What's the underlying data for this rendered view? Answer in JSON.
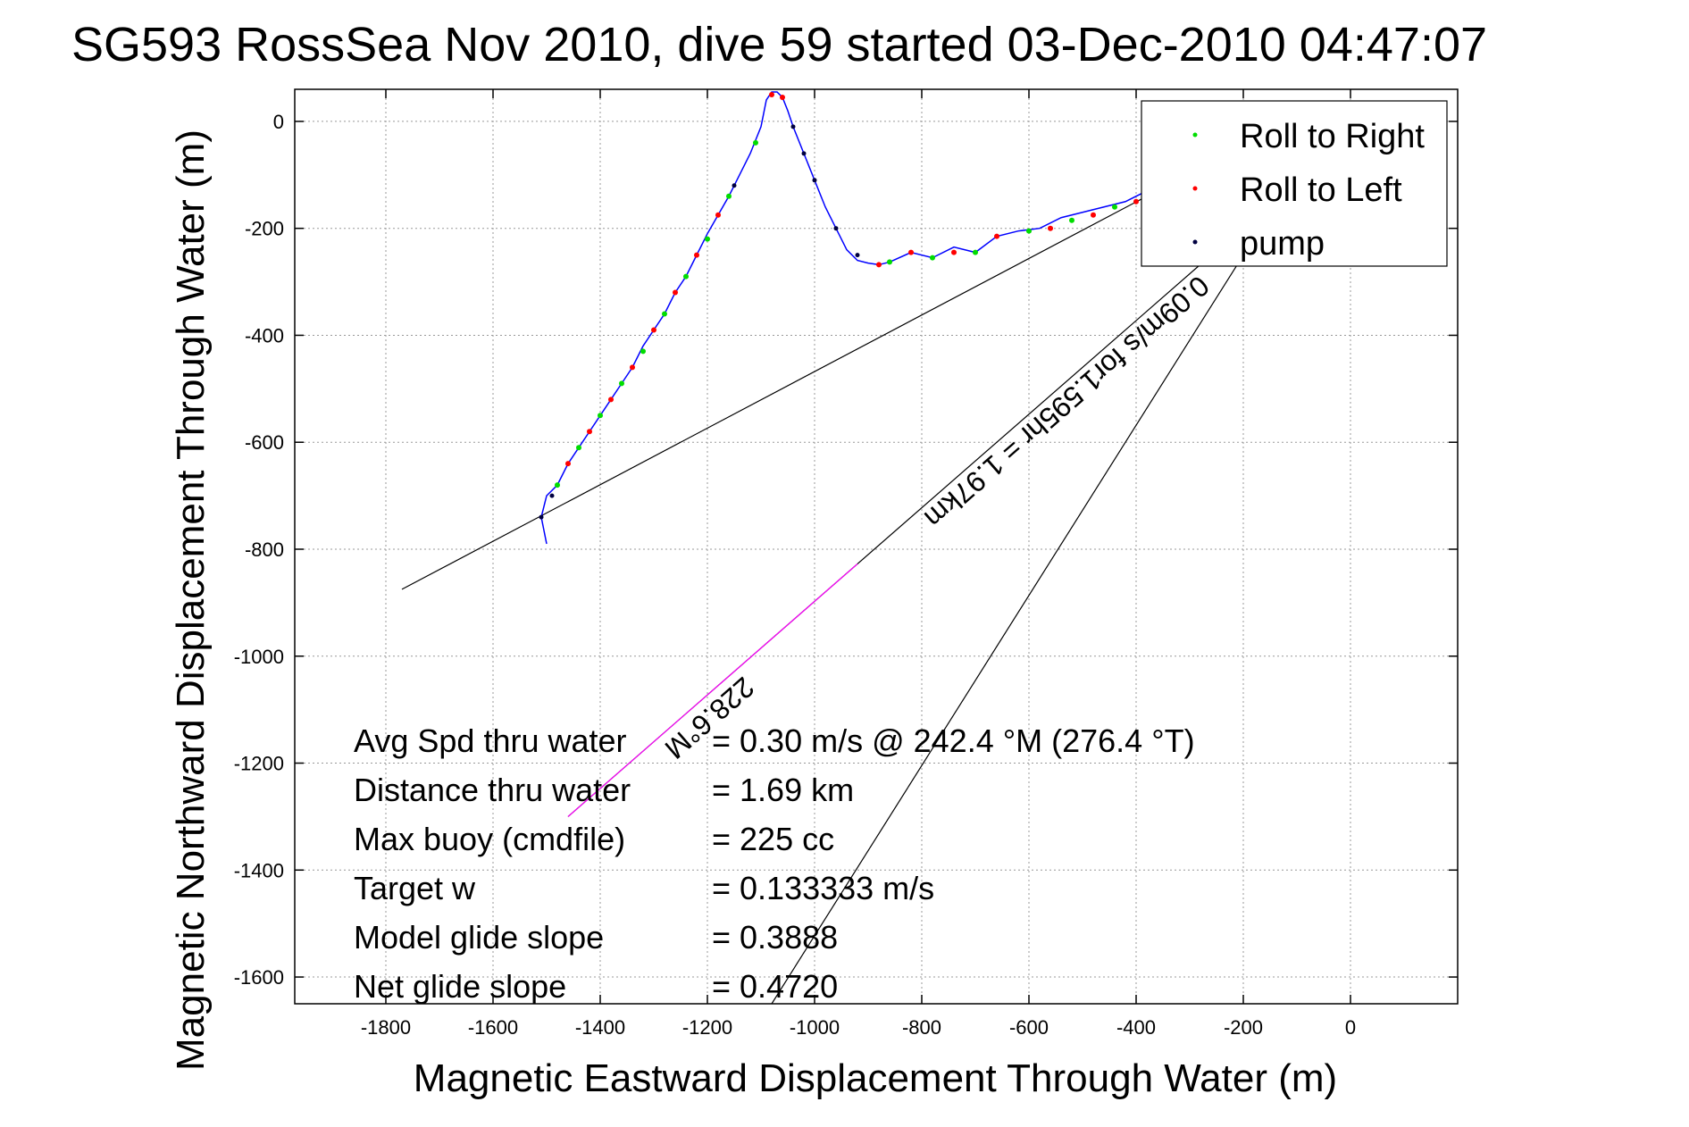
{
  "chart_data": {
    "type": "line",
    "title": "SG593 RossSea Nov 2010, dive 59 started 03-Dec-2010 04:47:07",
    "xlabel": "Magnetic Eastward Displacement Through Water (m)",
    "ylabel": "Magnetic Northward Displacement Through Water (m)",
    "xlim": [
      -1970,
      200
    ],
    "ylim": [
      -1650,
      60
    ],
    "xticks": [
      -1800,
      -1600,
      -1400,
      -1200,
      -1000,
      -800,
      -600,
      -400,
      -200,
      0
    ],
    "yticks": [
      0,
      -200,
      -400,
      -600,
      -800,
      -1000,
      -1200,
      -1400,
      -1600
    ],
    "grid": true,
    "legend_position": "top-right",
    "legend": [
      {
        "label": "Roll to Right",
        "color": "#00dd00"
      },
      {
        "label": "Roll to Left",
        "color": "#ff0000"
      },
      {
        "label": "pump",
        "color": "#000040"
      }
    ],
    "track": {
      "name": "track",
      "color": "#0000ff",
      "x": [
        -1500,
        -1510,
        -1500,
        -1480,
        -1460,
        -1440,
        -1420,
        -1400,
        -1380,
        -1360,
        -1340,
        -1320,
        -1300,
        -1280,
        -1260,
        -1240,
        -1220,
        -1200,
        -1180,
        -1160,
        -1140,
        -1120,
        -1100,
        -1090,
        -1080,
        -1070,
        -1060,
        -1050,
        -1040,
        -1020,
        -1000,
        -980,
        -960,
        -940,
        -920,
        -900,
        -880,
        -860,
        -820,
        -780,
        -740,
        -700,
        -660,
        -620,
        -580,
        -540,
        -500,
        -460,
        -420,
        -380,
        -340,
        -300
      ],
      "y": [
        -790,
        -740,
        -700,
        -680,
        -640,
        -610,
        -580,
        -550,
        -520,
        -490,
        -460,
        -420,
        -390,
        -360,
        -320,
        -290,
        -250,
        -210,
        -175,
        -140,
        -100,
        -60,
        -10,
        40,
        55,
        55,
        45,
        20,
        -10,
        -60,
        -110,
        -160,
        -200,
        -240,
        -260,
        -265,
        -268,
        -263,
        -245,
        -255,
        -235,
        -245,
        -215,
        -205,
        -200,
        -180,
        -170,
        -160,
        -150,
        -130,
        -110,
        -90
      ]
    },
    "roll_right_segments": [
      [
        -1480,
        -680
      ],
      [
        -1440,
        -610
      ],
      [
        -1400,
        -550
      ],
      [
        -1360,
        -490
      ],
      [
        -1320,
        -430
      ],
      [
        -1280,
        -360
      ],
      [
        -1240,
        -290
      ],
      [
        -1200,
        -220
      ],
      [
        -1160,
        -140
      ],
      [
        -1110,
        -40
      ],
      [
        -860,
        -263
      ],
      [
        -780,
        -255
      ],
      [
        -700,
        -245
      ],
      [
        -600,
        -205
      ],
      [
        -520,
        -185
      ],
      [
        -440,
        -160
      ]
    ],
    "roll_left_segments": [
      [
        -1460,
        -640
      ],
      [
        -1420,
        -580
      ],
      [
        -1380,
        -520
      ],
      [
        -1340,
        -460
      ],
      [
        -1300,
        -390
      ],
      [
        -1260,
        -320
      ],
      [
        -1220,
        -250
      ],
      [
        -1180,
        -175
      ],
      [
        -1080,
        50
      ],
      [
        -1060,
        45
      ],
      [
        -880,
        -268
      ],
      [
        -820,
        -245
      ],
      [
        -740,
        -245
      ],
      [
        -660,
        -215
      ],
      [
        -560,
        -200
      ],
      [
        -480,
        -175
      ],
      [
        -400,
        -150
      ]
    ],
    "pump_points": [
      [
        -1510,
        -740
      ],
      [
        -1490,
        -700
      ],
      [
        -1150,
        -120
      ],
      [
        -1040,
        -10
      ],
      [
        -1020,
        -60
      ],
      [
        -1000,
        -110
      ],
      [
        -960,
        -200
      ],
      [
        -920,
        -250
      ]
    ],
    "reference_lines": [
      {
        "name": "line-a",
        "x": [
          -1770,
          -380
        ],
        "y": [
          -875,
          -140
        ]
      },
      {
        "name": "line-b",
        "x": [
          -1460,
          -260
        ],
        "y": [
          -1300,
          -250
        ]
      },
      {
        "name": "line-c",
        "x": [
          -1080,
          -200
        ],
        "y": [
          -1650,
          -250
        ]
      }
    ],
    "annotations": {
      "heading": "228.6°M",
      "current": "0.09m/s for1.595hr = 1.97km"
    },
    "stats": [
      {
        "label": "Avg Spd thru water",
        "value": "=  0.30 m/s @ 242.4 °M (276.4 °T)"
      },
      {
        "label": "Distance thru water",
        "value": "=  1.69 km"
      },
      {
        "label": "Max buoy (cmdfile)",
        "value": "= 225 cc"
      },
      {
        "label": "Target w",
        "value": "= 0.133333 m/s"
      },
      {
        "label": "Model glide slope",
        "value": "= 0.3888"
      },
      {
        "label": "Net glide slope",
        "value": "= 0.4720"
      }
    ]
  }
}
